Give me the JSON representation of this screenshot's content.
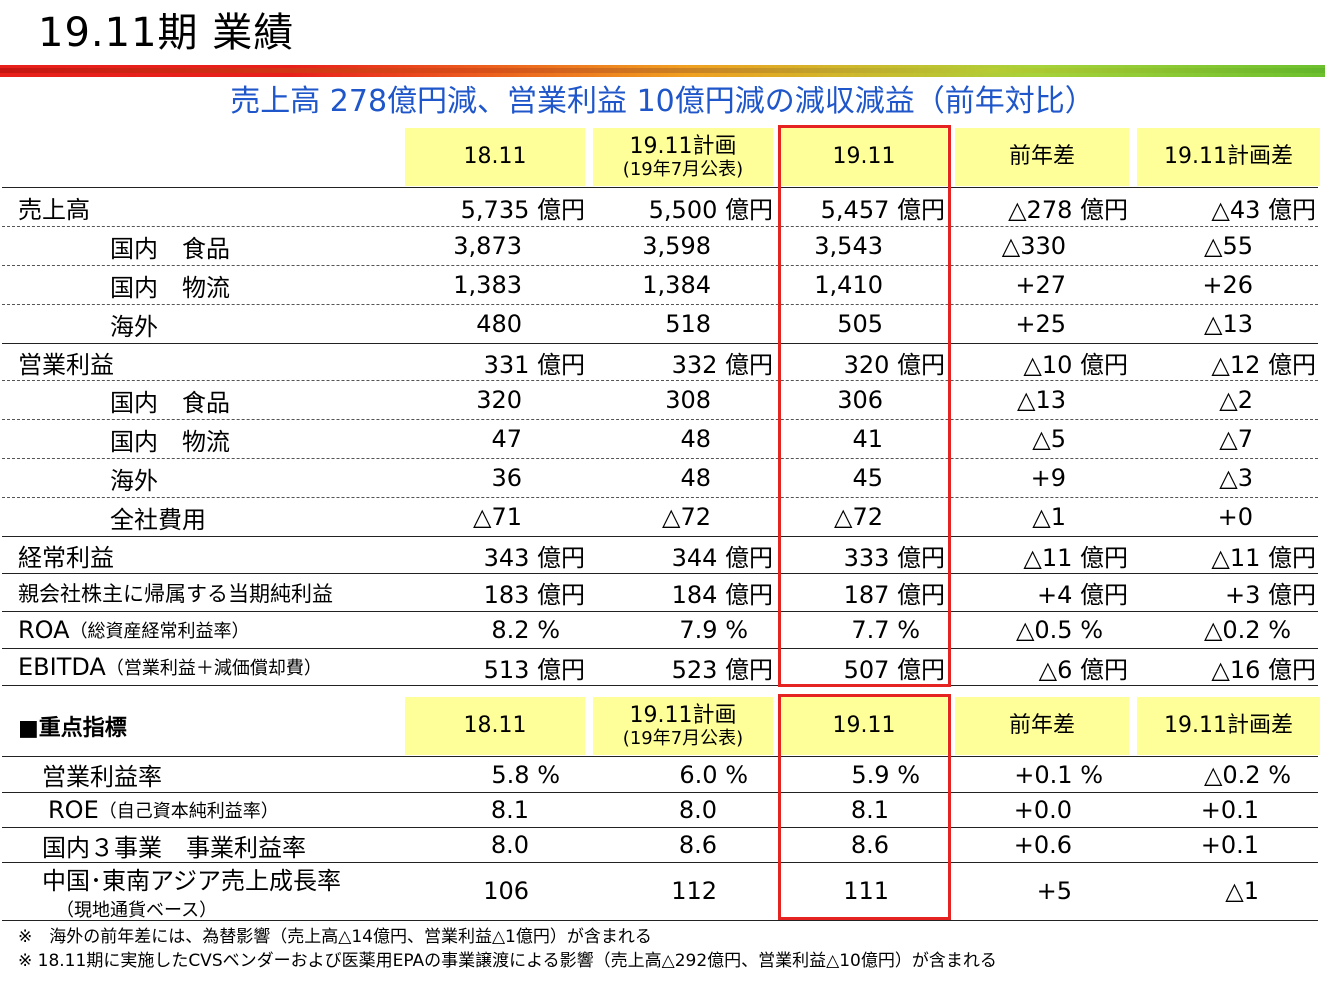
{
  "page_title": "19.11期 業績",
  "subtitle": "売上高 278億円減、営業利益 10億円減の減収減益（前年対比）",
  "header": {
    "col1": "18.11",
    "col2_line1": "19.11計画",
    "col2_line2": "(19年7月公表)",
    "col3": "19.11",
    "col4": "前年差",
    "col5": "19.11計画差"
  },
  "section2_title": "■重点指標",
  "rows": [
    {
      "label": "売上高",
      "v1": "5,735 億円",
      "v2": "5,500 億円",
      "v3": "5,457 億円",
      "v4": "△278 億円",
      "v5": "△43 億円"
    },
    {
      "label": "国内　食品",
      "v1": "3,873",
      "v2": "3,598",
      "v3": "3,543",
      "v4": "△330",
      "v5": "△55"
    },
    {
      "label": "国内　物流",
      "v1": "1,383",
      "v2": "1,384",
      "v3": "1,410",
      "v4": "+27",
      "v5": "+26"
    },
    {
      "label": "海外",
      "v1": "480",
      "v2": "518",
      "v3": "505",
      "v4": "+25",
      "v5": "△13"
    },
    {
      "label": "営業利益",
      "v1": "331 億円",
      "v2": "332 億円",
      "v3": "320 億円",
      "v4": "△10 億円",
      "v5": "△12 億円"
    },
    {
      "label": "国内　食品",
      "v1": "320",
      "v2": "308",
      "v3": "306",
      "v4": "△13",
      "v5": "△2"
    },
    {
      "label": "国内　物流",
      "v1": "47",
      "v2": "48",
      "v3": "41",
      "v4": "△5",
      "v5": "△7"
    },
    {
      "label": "海外",
      "v1": "36",
      "v2": "48",
      "v3": "45",
      "v4": "+9",
      "v5": "△3"
    },
    {
      "label": "全社費用",
      "v1": "△71",
      "v2": "△72",
      "v3": "△72",
      "v4": "△1",
      "v5": "+0"
    },
    {
      "label": "経常利益",
      "v1": "343 億円",
      "v2": "344 億円",
      "v3": "333 億円",
      "v4": "△11 億円",
      "v5": "△11 億円"
    },
    {
      "label": "親会社株主に帰属する当期純利益",
      "v1": "183 億円",
      "v2": "184 億円",
      "v3": "187 億円",
      "v4": "+4 億円",
      "v5": "+3 億円"
    },
    {
      "label": "ROA",
      "label_small": "（総資産経常利益率）",
      "v1": "8.2 %",
      "v2": "7.9 %",
      "v3": "7.7 %",
      "v4": "△0.5 %",
      "v5": "△0.2 %"
    },
    {
      "label": "EBITDA",
      "label_small": "（営業利益＋減価償却費）",
      "v1": "513 億円",
      "v2": "523 億円",
      "v3": "507 億円",
      "v4": "△6 億円",
      "v5": "△16 億円"
    }
  ],
  "kpi_rows": [
    {
      "label": "営業利益率",
      "v1": "5.8 %",
      "v2": "6.0 %",
      "v3": "5.9 %",
      "v4": "+0.1 %",
      "v5": "△0.2 %"
    },
    {
      "label": "ROE",
      "label_small": "（自己資本純利益率）",
      "v1": "8.1",
      "v2": "8.0",
      "v3": "8.1",
      "v4": "+0.0",
      "v5": "+0.1"
    },
    {
      "label": "国内３事業　事業利益率",
      "v1": "8.0",
      "v2": "8.6",
      "v3": "8.6",
      "v4": "+0.6",
      "v5": "+0.1"
    },
    {
      "label": "中国･東南アジア売上成長率",
      "label_line2": "（現地通貨ベース）",
      "v1": "106",
      "v2": "112",
      "v3": "111",
      "v4": "+5",
      "v5": "△1"
    }
  ],
  "notes": [
    "※　海外の前年差には、為替影響（売上高△14億円、営業利益△1億円）が含まれる",
    "※ 18.11期に実施したCVSベンダーおよび医薬用EPAの事業譲渡による影響（売上高△292億円、営業利益△10億円）が含まれる"
  ]
}
